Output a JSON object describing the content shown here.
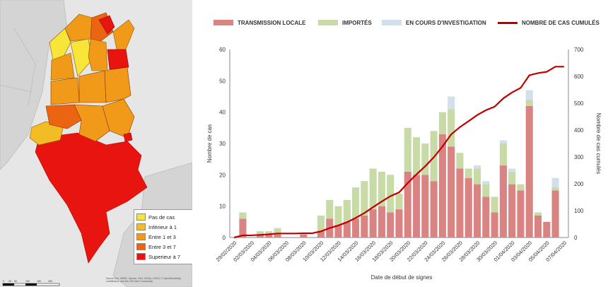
{
  "map": {
    "legend": [
      {
        "label": "Pas de cas",
        "color": "#f7e53a"
      },
      {
        "label": "Inférieur à 1",
        "color": "#f2bd24"
      },
      {
        "label": "Entre 1 et 3",
        "color": "#f19a1a"
      },
      {
        "label": "Entre 3 et 7",
        "color": "#ea6412"
      },
      {
        "label": "Superieur à 7",
        "color": "#e8140f"
      }
    ],
    "attribution": "Source Esri, HERE, Garmin, FAO, NOAA, USGS, © OpenStreetMap contributors, and the GIS User Community",
    "scale_labels": [
      "0",
      "25",
      "50",
      "100",
      "150",
      "200"
    ]
  },
  "chart_data": {
    "type": "bar",
    "legend": [
      {
        "label": "TRANSMISSION LOCALE",
        "color": "#d98383",
        "kind": "bar"
      },
      {
        "label": "IMPORTÉS",
        "color": "#c8dba6",
        "kind": "bar"
      },
      {
        "label": "EN COURS D'INVESTIGATION",
        "color": "#d2e0ee",
        "kind": "bar"
      },
      {
        "label": "NOMBRE DE CAS CUMULÉS",
        "color": "#c00000",
        "kind": "line"
      }
    ],
    "categories": [
      "29/02/2020",
      "01/03/2020",
      "02/03/2020",
      "03/03/2020",
      "04/03/2020",
      "05/03/2020",
      "06/03/2020",
      "07/03/2020",
      "08/03/2020",
      "09/03/2020",
      "10/03/2020",
      "11/03/2020",
      "12/03/2020",
      "13/03/2020",
      "14/03/2020",
      "15/03/2020",
      "16/03/2020",
      "17/03/2020",
      "18/03/2020",
      "19/03/2020",
      "20/03/2020",
      "21/03/2020",
      "22/03/2020",
      "23/03/2020",
      "24/03/2020",
      "25/03/2020",
      "26/03/2020",
      "27/03/2020",
      "28/03/2020",
      "29/03/2020",
      "30/03/2020",
      "31/03/2020",
      "01/04/2020",
      "02/04/2020",
      "03/04/2020",
      "04/04/2020",
      "05/04/2020",
      "06/04/2020",
      "07/04/2020"
    ],
    "tick_labels": [
      "29/02/2020",
      "02/03/2020",
      "04/03/2020",
      "06/03/2020",
      "08/03/2020",
      "10/03/2020",
      "12/03/2020",
      "14/03/2020",
      "16/03/2020",
      "18/03/2020",
      "20/03/2020",
      "22/03/2020",
      "24/03/2020",
      "26/03/2020",
      "28/03/2020",
      "30/03/2020",
      "01/04/2020",
      "03/04/2020",
      "05/04/2020",
      "07/04/2020"
    ],
    "series": [
      {
        "name": "TRANSMISSION LOCALE",
        "values": [
          0,
          6,
          0,
          1,
          1,
          1,
          0,
          0,
          1,
          0,
          2,
          6,
          4,
          5,
          6,
          7,
          9,
          10,
          8,
          9,
          21,
          20,
          20,
          18,
          33,
          29,
          22,
          19,
          17,
          13,
          8,
          23,
          17,
          15,
          42,
          7,
          5,
          15,
          0
        ]
      },
      {
        "name": "IMPORTÉS",
        "values": [
          0,
          2,
          0,
          1,
          1,
          2,
          0,
          0,
          0,
          0,
          5,
          6,
          6,
          7,
          10,
          11,
          13,
          11,
          12,
          5,
          14,
          12,
          10,
          16,
          7,
          12,
          5,
          3,
          5,
          4,
          5,
          7,
          4,
          2,
          2,
          1,
          0,
          1,
          0
        ]
      },
      {
        "name": "EN COURS D'INVESTIGATION",
        "values": [
          0,
          0,
          0,
          0,
          0,
          0,
          0,
          0,
          0,
          0,
          0,
          0,
          0,
          0,
          0,
          0,
          0,
          0,
          0,
          0,
          0,
          0,
          0,
          0,
          0,
          4,
          0,
          0,
          1,
          1,
          0,
          1,
          1,
          0,
          3,
          0,
          0,
          3,
          0
        ]
      },
      {
        "name": "NOMBRE DE CAS CUMULÉS",
        "values": [
          0,
          8,
          8,
          10,
          12,
          15,
          15,
          15,
          16,
          16,
          23,
          35,
          45,
          57,
          73,
          91,
          113,
          134,
          154,
          168,
          203,
          235,
          265,
          299,
          339,
          384,
          411,
          433,
          456,
          474,
          487,
          518,
          540,
          557,
          604,
          612,
          617,
          636,
          636
        ]
      }
    ],
    "ylabel": "Nombre de cas",
    "y2label": "Nombre de cas cumulés",
    "xlabel": "Date de début de signes",
    "ylim": [
      0,
      60
    ],
    "y2lim": [
      0,
      700
    ],
    "yticks": [
      "0",
      "10",
      "20",
      "30",
      "40",
      "50",
      "60"
    ],
    "y2ticks": [
      "0",
      "100",
      "200",
      "300",
      "400",
      "500",
      "600",
      "700"
    ]
  }
}
